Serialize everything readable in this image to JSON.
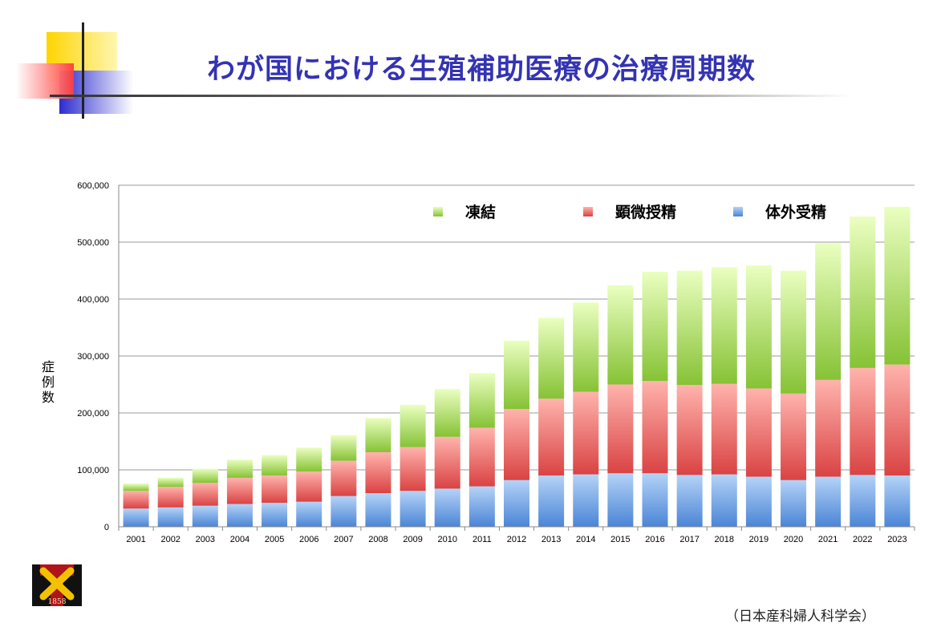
{
  "slide": {
    "title": "わが国における生殖補助医療の治療周期数",
    "ylabel_chars": [
      "症",
      "例",
      "数"
    ],
    "source": "（日本産科婦人科学会）",
    "logo_year": "1858"
  },
  "chart_data": {
    "type": "bar",
    "stacked": true,
    "title": "わが国における生殖補助医療の治療周期数",
    "ylabel": "症例数",
    "xlabel": "",
    "ylim": [
      0,
      600000
    ],
    "yticks": [
      0,
      100000,
      200000,
      300000,
      400000,
      500000,
      600000
    ],
    "ytick_labels": [
      "0",
      "100,000",
      "200,000",
      "300,000",
      "400,000",
      "500,000",
      "600,000"
    ],
    "grid": true,
    "legend_position": "top-right",
    "categories": [
      "2001",
      "2002",
      "2003",
      "2004",
      "2005",
      "2006",
      "2007",
      "2008",
      "2009",
      "2010",
      "2011",
      "2012",
      "2013",
      "2014",
      "2015",
      "2016",
      "2017",
      "2018",
      "2019",
      "2020",
      "2021",
      "2022",
      "2023"
    ],
    "series": [
      {
        "name": "体外受精",
        "color": "#5b8fd8",
        "values": [
          32000,
          34000,
          37000,
          40000,
          42000,
          44000,
          54000,
          59000,
          63000,
          67000,
          71000,
          82000,
          90000,
          92000,
          94000,
          94000,
          91000,
          92000,
          88000,
          82000,
          88000,
          91000,
          90000
        ]
      },
      {
        "name": "顕微授精",
        "color": "#e05050",
        "values": [
          31000,
          36000,
          40000,
          46000,
          48000,
          53000,
          62000,
          72000,
          77000,
          91000,
          103000,
          125000,
          135000,
          145000,
          156000,
          162000,
          158000,
          159000,
          155000,
          152000,
          170000,
          188000,
          195000
        ]
      },
      {
        "name": "凍結",
        "color": "#8cc63f",
        "values": [
          13000,
          16000,
          25000,
          32000,
          36000,
          42000,
          45000,
          60000,
          74000,
          84000,
          96000,
          120000,
          142000,
          157000,
          174000,
          192000,
          201000,
          205000,
          216000,
          216000,
          240000,
          266000,
          277000
        ]
      }
    ]
  }
}
